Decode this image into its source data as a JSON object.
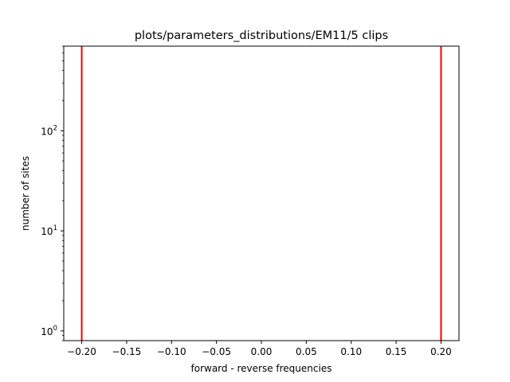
{
  "chart_data": {
    "type": "line",
    "title": "plots/parameters_distributions/EM11/5 clips",
    "xlabel": "forward - reverse frequencies",
    "ylabel": "number of sites",
    "xlim": [
      -0.22,
      0.22
    ],
    "ylim": [
      0.8,
      700
    ],
    "yscale": "log",
    "grid": false,
    "x_ticks": [
      -0.2,
      -0.15,
      -0.1,
      -0.05,
      0.0,
      0.05,
      0.1,
      0.15,
      0.2
    ],
    "x_tick_labels": [
      "−0.20",
      "−0.15",
      "−0.10",
      "−0.05",
      "0.00",
      "0.05",
      "0.10",
      "0.15",
      "0.20"
    ],
    "y_ticks": [
      1,
      10,
      100
    ],
    "y_tick_labels": [
      {
        "base": "10",
        "exp": "0"
      },
      {
        "base": "10",
        "exp": "1"
      },
      {
        "base": "10",
        "exp": "2"
      }
    ],
    "vlines": [
      {
        "x": -0.2,
        "color": "#ff0000"
      },
      {
        "x": 0.2,
        "color": "#ff0000"
      }
    ]
  }
}
